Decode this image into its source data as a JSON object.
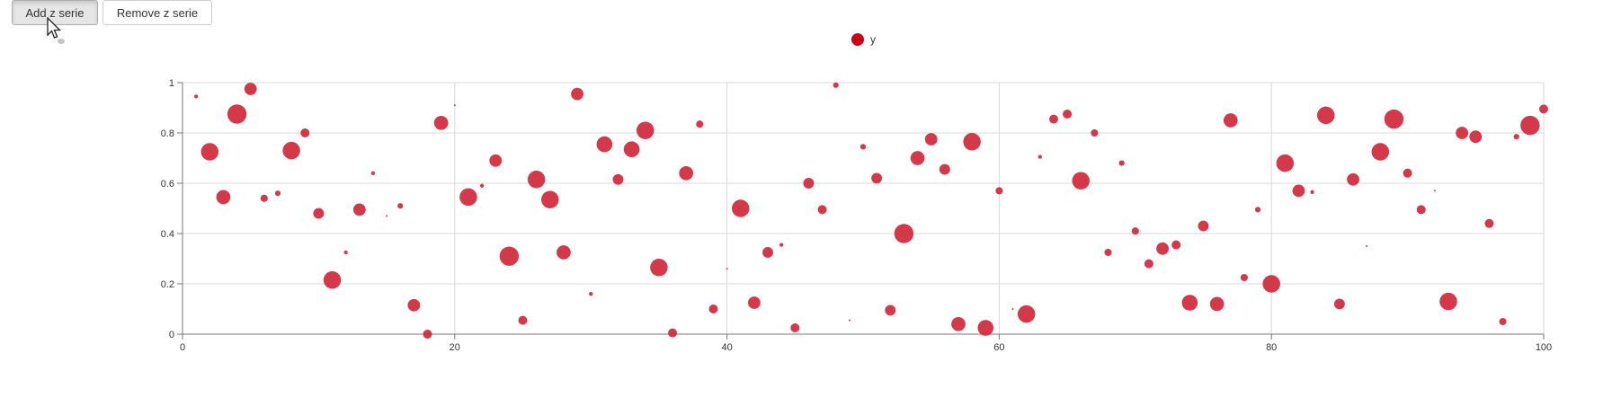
{
  "toolbar": {
    "add_label": "Add z serie",
    "remove_label": "Remove z serie"
  },
  "colors": {
    "series": "#d0283b",
    "legend": "#c80019",
    "grid": "#d9d9d9",
    "axis": "#777777"
  },
  "chart_data": {
    "type": "scatter",
    "legend_position": "top-center",
    "grid": true,
    "xlim": [
      0,
      100
    ],
    "ylim": [
      0,
      1
    ],
    "x_ticks": [
      "0",
      "20",
      "40",
      "60",
      "80",
      "100"
    ],
    "y_ticks": [
      "0",
      "0.2",
      "0.4",
      "0.6",
      "0.8",
      "1"
    ],
    "series": [
      {
        "name": "y",
        "points": [
          {
            "x": 1,
            "y": 0.945,
            "z": 1
          },
          {
            "x": 2,
            "y": 0.725,
            "z": 9
          },
          {
            "x": 3,
            "y": 0.545,
            "z": 7
          },
          {
            "x": 4,
            "y": 0.875,
            "z": 10
          },
          {
            "x": 5,
            "y": 0.975,
            "z": 6
          },
          {
            "x": 6,
            "y": 0.54,
            "z": 3
          },
          {
            "x": 7,
            "y": 0.56,
            "z": 2
          },
          {
            "x": 8,
            "y": 0.73,
            "z": 9
          },
          {
            "x": 9,
            "y": 0.8,
            "z": 4
          },
          {
            "x": 10,
            "y": 0.48,
            "z": 5
          },
          {
            "x": 11,
            "y": 0.215,
            "z": 9
          },
          {
            "x": 12,
            "y": 0.325,
            "z": 1
          },
          {
            "x": 13,
            "y": 0.495,
            "z": 6
          },
          {
            "x": 14,
            "y": 0.64,
            "z": 1
          },
          {
            "x": 15,
            "y": 0.47,
            "z": 0.5
          },
          {
            "x": 16,
            "y": 0.51,
            "z": 2
          },
          {
            "x": 17,
            "y": 0.115,
            "z": 6
          },
          {
            "x": 18,
            "y": 0.0,
            "z": 4
          },
          {
            "x": 19,
            "y": 0.84,
            "z": 7
          },
          {
            "x": 20,
            "y": 0.91,
            "z": 0.5
          },
          {
            "x": 21,
            "y": 0.545,
            "z": 9
          },
          {
            "x": 22,
            "y": 0.59,
            "z": 1
          },
          {
            "x": 23,
            "y": 0.69,
            "z": 6
          },
          {
            "x": 24,
            "y": 0.31,
            "z": 10
          },
          {
            "x": 25,
            "y": 0.055,
            "z": 4
          },
          {
            "x": 26,
            "y": 0.615,
            "z": 9
          },
          {
            "x": 27,
            "y": 0.535,
            "z": 9
          },
          {
            "x": 28,
            "y": 0.325,
            "z": 7
          },
          {
            "x": 29,
            "y": 0.955,
            "z": 6
          },
          {
            "x": 30,
            "y": 0.16,
            "z": 1
          },
          {
            "x": 31,
            "y": 0.755,
            "z": 8
          },
          {
            "x": 32,
            "y": 0.615,
            "z": 5
          },
          {
            "x": 33,
            "y": 0.735,
            "z": 8
          },
          {
            "x": 34,
            "y": 0.81,
            "z": 9
          },
          {
            "x": 35,
            "y": 0.265,
            "z": 9
          },
          {
            "x": 36,
            "y": 0.005,
            "z": 4
          },
          {
            "x": 37,
            "y": 0.64,
            "z": 7
          },
          {
            "x": 38,
            "y": 0.835,
            "z": 3
          },
          {
            "x": 39,
            "y": 0.1,
            "z": 4
          },
          {
            "x": 40,
            "y": 0.26,
            "z": 0.5
          },
          {
            "x": 41,
            "y": 0.5,
            "z": 9
          },
          {
            "x": 42,
            "y": 0.125,
            "z": 6
          },
          {
            "x": 43,
            "y": 0.325,
            "z": 5
          },
          {
            "x": 44,
            "y": 0.355,
            "z": 1
          },
          {
            "x": 45,
            "y": 0.025,
            "z": 4
          },
          {
            "x": 46,
            "y": 0.6,
            "z": 5
          },
          {
            "x": 47,
            "y": 0.495,
            "z": 4
          },
          {
            "x": 48,
            "y": 0.99,
            "z": 2
          },
          {
            "x": 49,
            "y": 0.055,
            "z": 0.5
          },
          {
            "x": 50,
            "y": 0.745,
            "z": 2
          },
          {
            "x": 51,
            "y": 0.62,
            "z": 5
          },
          {
            "x": 52,
            "y": 0.095,
            "z": 5
          },
          {
            "x": 53,
            "y": 0.4,
            "z": 10
          },
          {
            "x": 54,
            "y": 0.7,
            "z": 7
          },
          {
            "x": 55,
            "y": 0.775,
            "z": 6
          },
          {
            "x": 56,
            "y": 0.655,
            "z": 5
          },
          {
            "x": 57,
            "y": 0.04,
            "z": 7
          },
          {
            "x": 58,
            "y": 0.765,
            "z": 9
          },
          {
            "x": 59,
            "y": 0.025,
            "z": 8
          },
          {
            "x": 60,
            "y": 0.57,
            "z": 3
          },
          {
            "x": 61,
            "y": 0.1,
            "z": 0.5
          },
          {
            "x": 62,
            "y": 0.08,
            "z": 9
          },
          {
            "x": 63,
            "y": 0.705,
            "z": 1
          },
          {
            "x": 64,
            "y": 0.855,
            "z": 4
          },
          {
            "x": 65,
            "y": 0.875,
            "z": 4
          },
          {
            "x": 66,
            "y": 0.61,
            "z": 9
          },
          {
            "x": 67,
            "y": 0.8,
            "z": 3
          },
          {
            "x": 68,
            "y": 0.325,
            "z": 3
          },
          {
            "x": 69,
            "y": 0.68,
            "z": 2
          },
          {
            "x": 70,
            "y": 0.41,
            "z": 3
          },
          {
            "x": 71,
            "y": 0.28,
            "z": 4
          },
          {
            "x": 72,
            "y": 0.34,
            "z": 6
          },
          {
            "x": 73,
            "y": 0.355,
            "z": 4
          },
          {
            "x": 74,
            "y": 0.125,
            "z": 8
          },
          {
            "x": 75,
            "y": 0.43,
            "z": 5
          },
          {
            "x": 76,
            "y": 0.12,
            "z": 7
          },
          {
            "x": 77,
            "y": 0.85,
            "z": 7
          },
          {
            "x": 78,
            "y": 0.225,
            "z": 3
          },
          {
            "x": 79,
            "y": 0.495,
            "z": 2
          },
          {
            "x": 80,
            "y": 0.2,
            "z": 9
          },
          {
            "x": 81,
            "y": 0.68,
            "z": 9
          },
          {
            "x": 82,
            "y": 0.57,
            "z": 6
          },
          {
            "x": 83,
            "y": 0.565,
            "z": 1
          },
          {
            "x": 84,
            "y": 0.87,
            "z": 9
          },
          {
            "x": 85,
            "y": 0.12,
            "z": 5
          },
          {
            "x": 86,
            "y": 0.615,
            "z": 6
          },
          {
            "x": 87,
            "y": 0.35,
            "z": 0.5
          },
          {
            "x": 88,
            "y": 0.725,
            "z": 9
          },
          {
            "x": 89,
            "y": 0.855,
            "z": 10
          },
          {
            "x": 90,
            "y": 0.64,
            "z": 4
          },
          {
            "x": 91,
            "y": 0.495,
            "z": 4
          },
          {
            "x": 92,
            "y": 0.57,
            "z": 0.5
          },
          {
            "x": 93,
            "y": 0.13,
            "z": 9
          },
          {
            "x": 94,
            "y": 0.8,
            "z": 6
          },
          {
            "x": 95,
            "y": 0.785,
            "z": 6
          },
          {
            "x": 96,
            "y": 0.44,
            "z": 4
          },
          {
            "x": 97,
            "y": 0.05,
            "z": 3
          },
          {
            "x": 98,
            "y": 0.785,
            "z": 2
          },
          {
            "x": 99,
            "y": 0.83,
            "z": 10
          },
          {
            "x": 100,
            "y": 0.895,
            "z": 4
          }
        ]
      }
    ]
  }
}
